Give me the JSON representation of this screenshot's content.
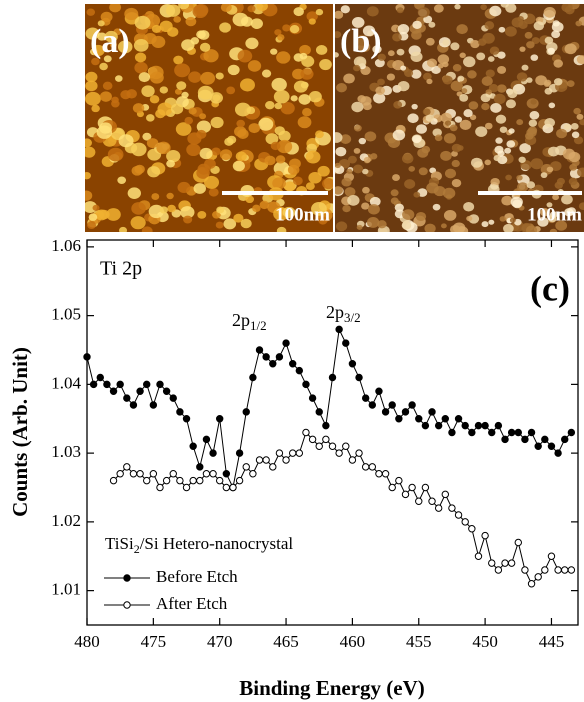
{
  "panels": [
    {
      "label": "(a)",
      "scale_bar": "100nm"
    },
    {
      "label": "(b)",
      "scale_bar": "100nm"
    }
  ],
  "chart_data": {
    "type": "line",
    "label": "(c)",
    "title": "Ti 2p",
    "x_label": "Binding Energy (eV)",
    "y_label": "Counts (Arb. Unit)",
    "annotations": [
      {
        "text": "2p",
        "sub": "1/2"
      },
      {
        "text": "2p",
        "sub": "3/2"
      }
    ],
    "legend_title": {
      "text": "TiSi",
      "sub": "2",
      "tail": "/Si Hetero-nanocrystal"
    },
    "x": [
      480,
      479.5,
      479,
      478.5,
      478,
      477.5,
      477,
      476.5,
      476,
      475.5,
      475,
      474.5,
      474,
      473.5,
      473,
      472.5,
      472,
      471.5,
      471,
      470.5,
      470,
      469.5,
      469,
      468.5,
      468,
      467.5,
      467,
      466.5,
      466,
      465.5,
      465,
      464.5,
      464,
      463.5,
      463,
      462.5,
      462,
      461.5,
      461,
      460.5,
      460,
      459.5,
      459,
      458.5,
      458,
      457.5,
      457,
      456.5,
      456,
      455.5,
      455,
      454.5,
      454,
      453.5,
      453,
      452.5,
      452,
      451.5,
      451,
      450.5,
      450,
      449.5,
      449,
      448.5,
      448,
      447.5,
      447,
      446.5,
      446,
      445.5,
      445,
      444.5,
      444,
      443.5
    ],
    "series": [
      {
        "name": "Before Etch",
        "color": "#000000",
        "marker": "filled",
        "values": [
          1.044,
          1.04,
          1.041,
          1.04,
          1.039,
          1.04,
          1.038,
          1.037,
          1.039,
          1.04,
          1.037,
          1.04,
          1.039,
          1.038,
          1.036,
          1.035,
          1.031,
          1.028,
          1.032,
          1.03,
          1.035,
          1.027,
          1.025,
          1.03,
          1.036,
          1.041,
          1.045,
          1.044,
          1.043,
          1.044,
          1.046,
          1.043,
          1.042,
          1.04,
          1.038,
          1.036,
          1.034,
          1.041,
          1.048,
          1.046,
          1.043,
          1.041,
          1.038,
          1.037,
          1.039,
          1.036,
          1.037,
          1.035,
          1.036,
          1.037,
          1.035,
          1.034,
          1.036,
          1.034,
          1.035,
          1.033,
          1.035,
          1.034,
          1.033,
          1.034,
          1.034,
          1.033,
          1.034,
          1.032,
          1.033,
          1.033,
          1.032,
          1.033,
          1.031,
          1.032,
          1.031,
          1.03,
          1.032,
          1.033
        ]
      },
      {
        "name": "After Etch",
        "color": "#000000",
        "marker": "open",
        "values": [
          null,
          null,
          null,
          null,
          1.026,
          1.027,
          1.028,
          1.027,
          1.027,
          1.026,
          1.027,
          1.025,
          1.026,
          1.027,
          1.026,
          1.025,
          1.026,
          1.026,
          1.027,
          1.027,
          1.026,
          1.025,
          1.025,
          1.026,
          1.028,
          1.027,
          1.029,
          1.029,
          1.028,
          1.03,
          1.029,
          1.03,
          1.03,
          1.033,
          1.032,
          1.031,
          1.032,
          1.031,
          1.03,
          1.031,
          1.029,
          1.03,
          1.028,
          1.028,
          1.027,
          1.027,
          1.025,
          1.026,
          1.024,
          1.025,
          1.023,
          1.025,
          1.023,
          1.022,
          1.024,
          1.022,
          1.021,
          1.02,
          1.019,
          1.015,
          1.018,
          1.014,
          1.013,
          1.014,
          1.014,
          1.017,
          1.013,
          1.011,
          1.012,
          1.013,
          1.015,
          1.013,
          1.013,
          1.013
        ]
      }
    ],
    "xlim": [
      480,
      443
    ],
    "ylim": [
      1.005,
      1.061
    ],
    "xticks": [
      480,
      475,
      470,
      465,
      460,
      455,
      450,
      445
    ],
    "yticks": [
      1.01,
      1.02,
      1.03,
      1.04,
      1.05,
      1.06
    ]
  }
}
